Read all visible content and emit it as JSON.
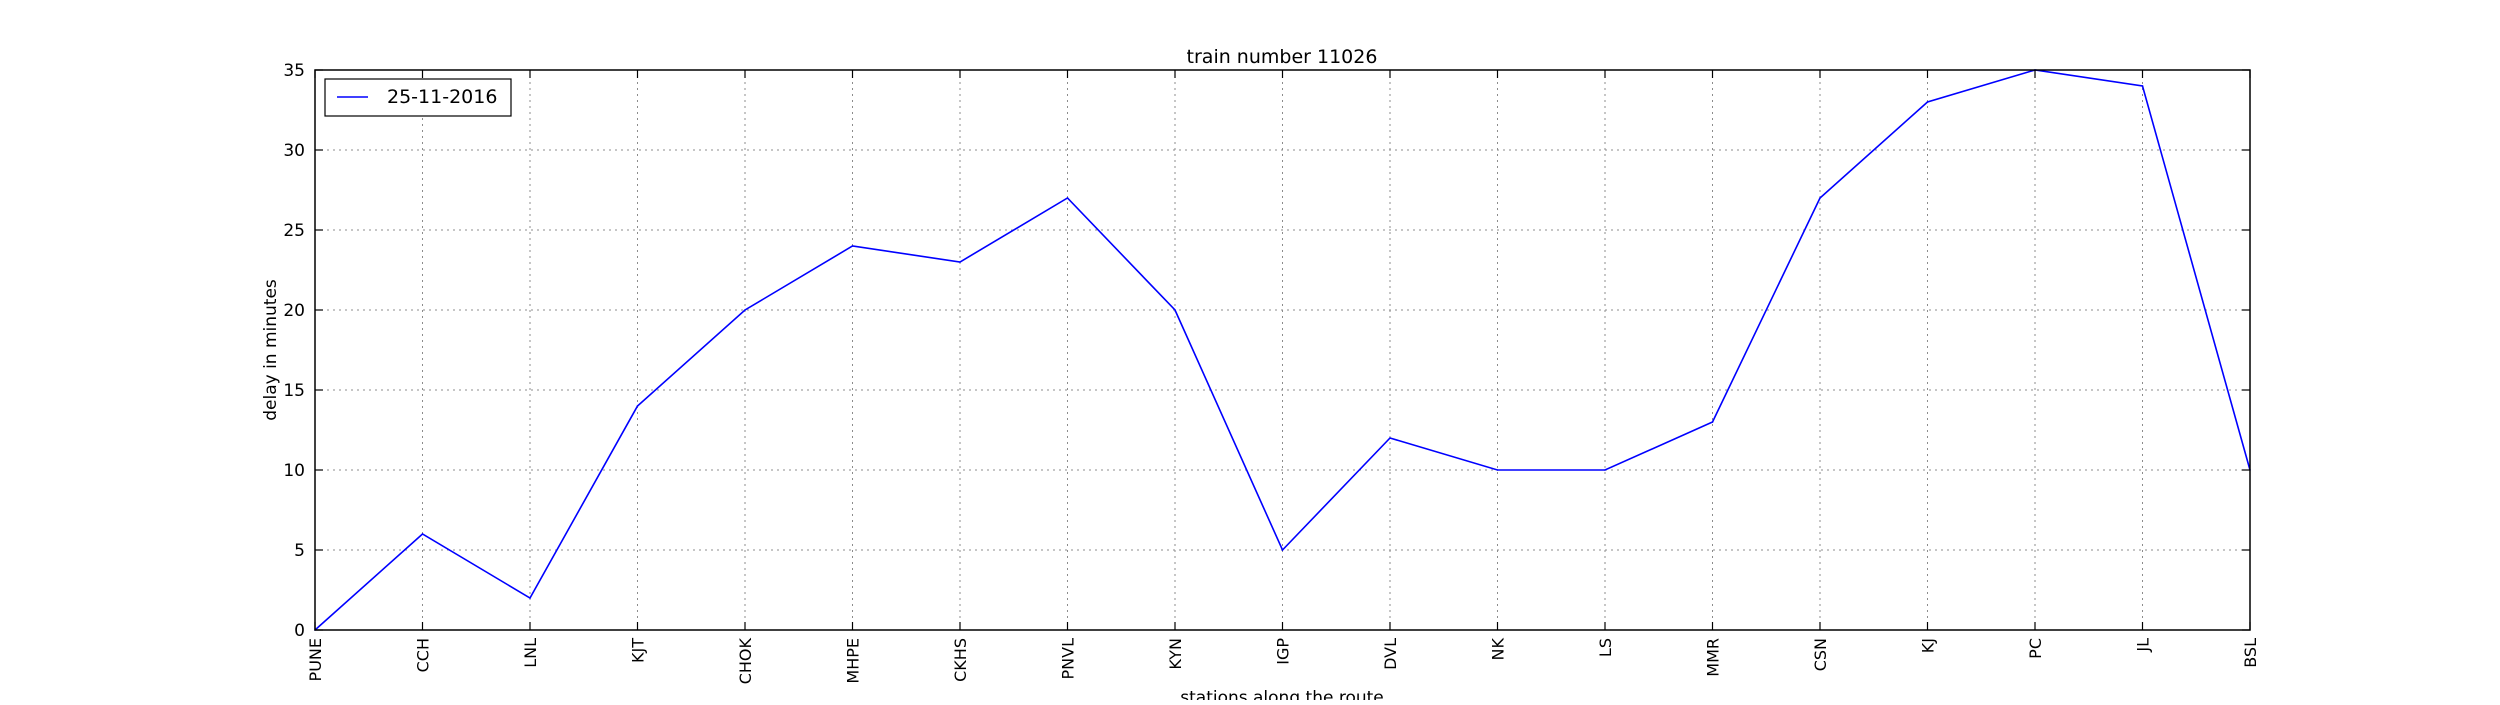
{
  "chart_data": {
    "type": "line",
    "title": "train number 11026",
    "xlabel": "stations along the route",
    "ylabel": "delay in minutes",
    "categories": [
      "PUNE",
      "CCH",
      "LNL",
      "KJT",
      "CHOK",
      "MHPE",
      "CKHS",
      "PNVL",
      "KYN",
      "IGP",
      "DVL",
      "NK",
      "LS",
      "MMR",
      "CSN",
      "KJ",
      "PC",
      "JL",
      "BSL"
    ],
    "series": [
      {
        "name": "25-11-2016",
        "values": [
          0,
          6,
          2,
          14,
          20,
          24,
          23,
          27,
          20,
          5,
          12,
          10,
          10,
          13,
          27,
          33,
          35,
          34,
          10
        ],
        "color": "#0000ff"
      }
    ],
    "ylim": [
      0,
      35
    ],
    "yticks": [
      0,
      5,
      10,
      15,
      20,
      25,
      30,
      35
    ],
    "grid": true,
    "legend_position": "top-left"
  }
}
